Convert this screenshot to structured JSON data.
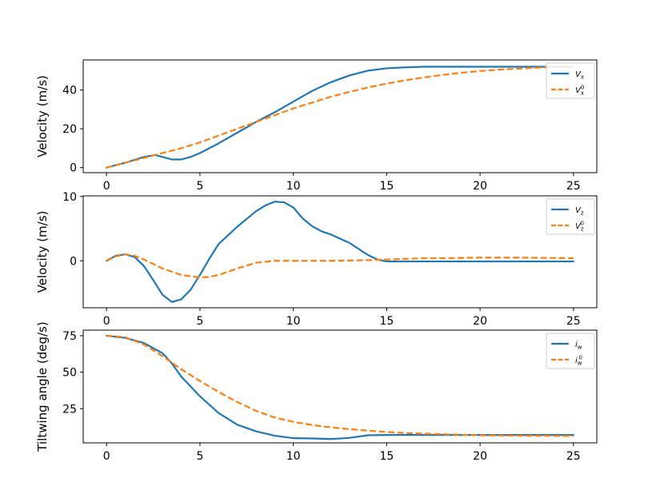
{
  "chart_data": [
    {
      "type": "line",
      "ylabel": "Velocity (m/s)",
      "xlabel": "",
      "xlim": [
        -1.25,
        26.25
      ],
      "ylim": [
        -2.6,
        55.5
      ],
      "xticks": [
        0,
        5,
        10,
        15,
        20,
        25
      ],
      "yticks": [
        0,
        20,
        40
      ],
      "legend_position": "top-right",
      "grid": false,
      "series": [
        {
          "name": "V_x",
          "legend_main": "V",
          "legend_sub": "x",
          "legend_sup": "",
          "color": "#1f77b4",
          "dash": "solid",
          "x": [
            0,
            1,
            2,
            2.6,
            3,
            3.5,
            4,
            4.5,
            5,
            6,
            7,
            8,
            9,
            10,
            11,
            12,
            13,
            14,
            15,
            16,
            17,
            18,
            20,
            22,
            24,
            25
          ],
          "y": [
            0,
            2.5,
            5.5,
            6.5,
            5.5,
            4.2,
            4.2,
            5.5,
            7.5,
            12.5,
            18,
            23.5,
            28.5,
            34,
            39.5,
            44,
            47.5,
            50,
            51.2,
            51.7,
            52,
            52,
            52,
            52,
            52,
            52
          ]
        },
        {
          "name": "V_x^0",
          "legend_main": "V",
          "legend_sub": "x",
          "legend_sup": "0",
          "color": "#ff7f0e",
          "dash": "dashed",
          "x": [
            0,
            1,
            2,
            3,
            4,
            5,
            6,
            7,
            8,
            9,
            10,
            11,
            12,
            13,
            14,
            15,
            16,
            17,
            18,
            19,
            20,
            21,
            22,
            23,
            24,
            25
          ],
          "y": [
            0,
            2.5,
            5,
            7.5,
            10,
            13,
            16.5,
            20,
            23.5,
            27,
            30.5,
            33.5,
            36.5,
            39,
            41.3,
            43.3,
            45,
            46.5,
            47.8,
            48.9,
            49.8,
            50.5,
            51,
            51.5,
            51.8,
            52
          ]
        }
      ]
    },
    {
      "type": "line",
      "ylabel": "Velocity (m/s)",
      "xlabel": "",
      "xlim": [
        -1.25,
        26.25
      ],
      "ylim": [
        -7.3,
        10.1
      ],
      "xticks": [
        0,
        5,
        10,
        15,
        20,
        25
      ],
      "yticks": [
        0,
        10
      ],
      "legend_position": "top-right",
      "grid": false,
      "series": [
        {
          "name": "V_z",
          "legend_main": "V",
          "legend_sub": "z",
          "legend_sup": "",
          "color": "#1f77b4",
          "dash": "solid",
          "x": [
            0,
            0.5,
            1,
            1.5,
            2,
            2.5,
            3,
            3.5,
            4,
            4.5,
            5,
            5.5,
            6,
            7,
            8,
            8.5,
            9,
            9.5,
            10,
            10.5,
            11,
            11.5,
            12,
            13,
            14,
            14.5,
            15,
            16,
            17,
            18,
            20,
            22,
            25
          ],
          "y": [
            0,
            0.8,
            1.0,
            0.6,
            -0.8,
            -3,
            -5.3,
            -6.4,
            -6,
            -4.5,
            -2.2,
            0.3,
            2.6,
            5.3,
            7.7,
            8.6,
            9.2,
            9.1,
            8.3,
            6.6,
            5.4,
            4.6,
            4.1,
            2.8,
            0.9,
            0.2,
            -0.1,
            -0.1,
            -0.1,
            -0.1,
            -0.1,
            -0.1,
            -0.1
          ]
        },
        {
          "name": "V_z^0",
          "legend_main": "V",
          "legend_sub": "z",
          "legend_sup": "0",
          "color": "#ff7f0e",
          "dash": "dashed",
          "x": [
            0,
            0.5,
            1,
            1.5,
            2,
            2.5,
            3,
            4,
            5,
            5.5,
            6,
            7,
            8,
            9,
            10,
            12,
            14,
            15,
            16,
            17,
            18,
            20,
            22,
            25
          ],
          "y": [
            0,
            0.7,
            1.0,
            0.8,
            0.2,
            -0.5,
            -1.2,
            -2.2,
            -2.6,
            -2.5,
            -2.2,
            -1.2,
            -0.3,
            0,
            0,
            0,
            0.1,
            0.2,
            0.3,
            0.4,
            0.4,
            0.5,
            0.5,
            0.4
          ]
        }
      ]
    },
    {
      "type": "line",
      "ylabel": "Tiltwing angle (deg/s)",
      "xlabel": "",
      "xlim": [
        -1.25,
        26.25
      ],
      "ylim": [
        1.6,
        78.8
      ],
      "xticks": [
        0,
        5,
        10,
        15,
        20,
        25
      ],
      "yticks": [
        25,
        50,
        75
      ],
      "legend_position": "top-right",
      "grid": false,
      "series": [
        {
          "name": "i_w",
          "legend_main": "i",
          "legend_sub": "w",
          "legend_sup": "",
          "color": "#1f77b4",
          "dash": "solid",
          "x": [
            0,
            1,
            2,
            3,
            3.5,
            4,
            5,
            6,
            7,
            8,
            9,
            10,
            11,
            12,
            13,
            14,
            15,
            17,
            20,
            25
          ],
          "y": [
            75,
            73.5,
            70,
            63,
            56,
            47,
            33.5,
            22,
            14,
            9.5,
            6.5,
            4.8,
            4.6,
            4.2,
            5,
            6.8,
            7,
            7,
            7,
            7
          ]
        },
        {
          "name": "i_w^0",
          "legend_main": "i",
          "legend_sub": "w",
          "legend_sup": "0",
          "color": "#ff7f0e",
          "dash": "dashed",
          "x": [
            0,
            1,
            2,
            3,
            4,
            5,
            6,
            7,
            8,
            9,
            10,
            11,
            12,
            13,
            14,
            15,
            16,
            18,
            20,
            22,
            25
          ],
          "y": [
            75,
            74,
            69,
            61,
            52,
            44,
            36.5,
            29.5,
            23.5,
            19,
            16,
            13.8,
            12.2,
            11,
            10,
            9,
            8.3,
            7.5,
            6.8,
            6.5,
            6.3
          ]
        }
      ]
    }
  ]
}
